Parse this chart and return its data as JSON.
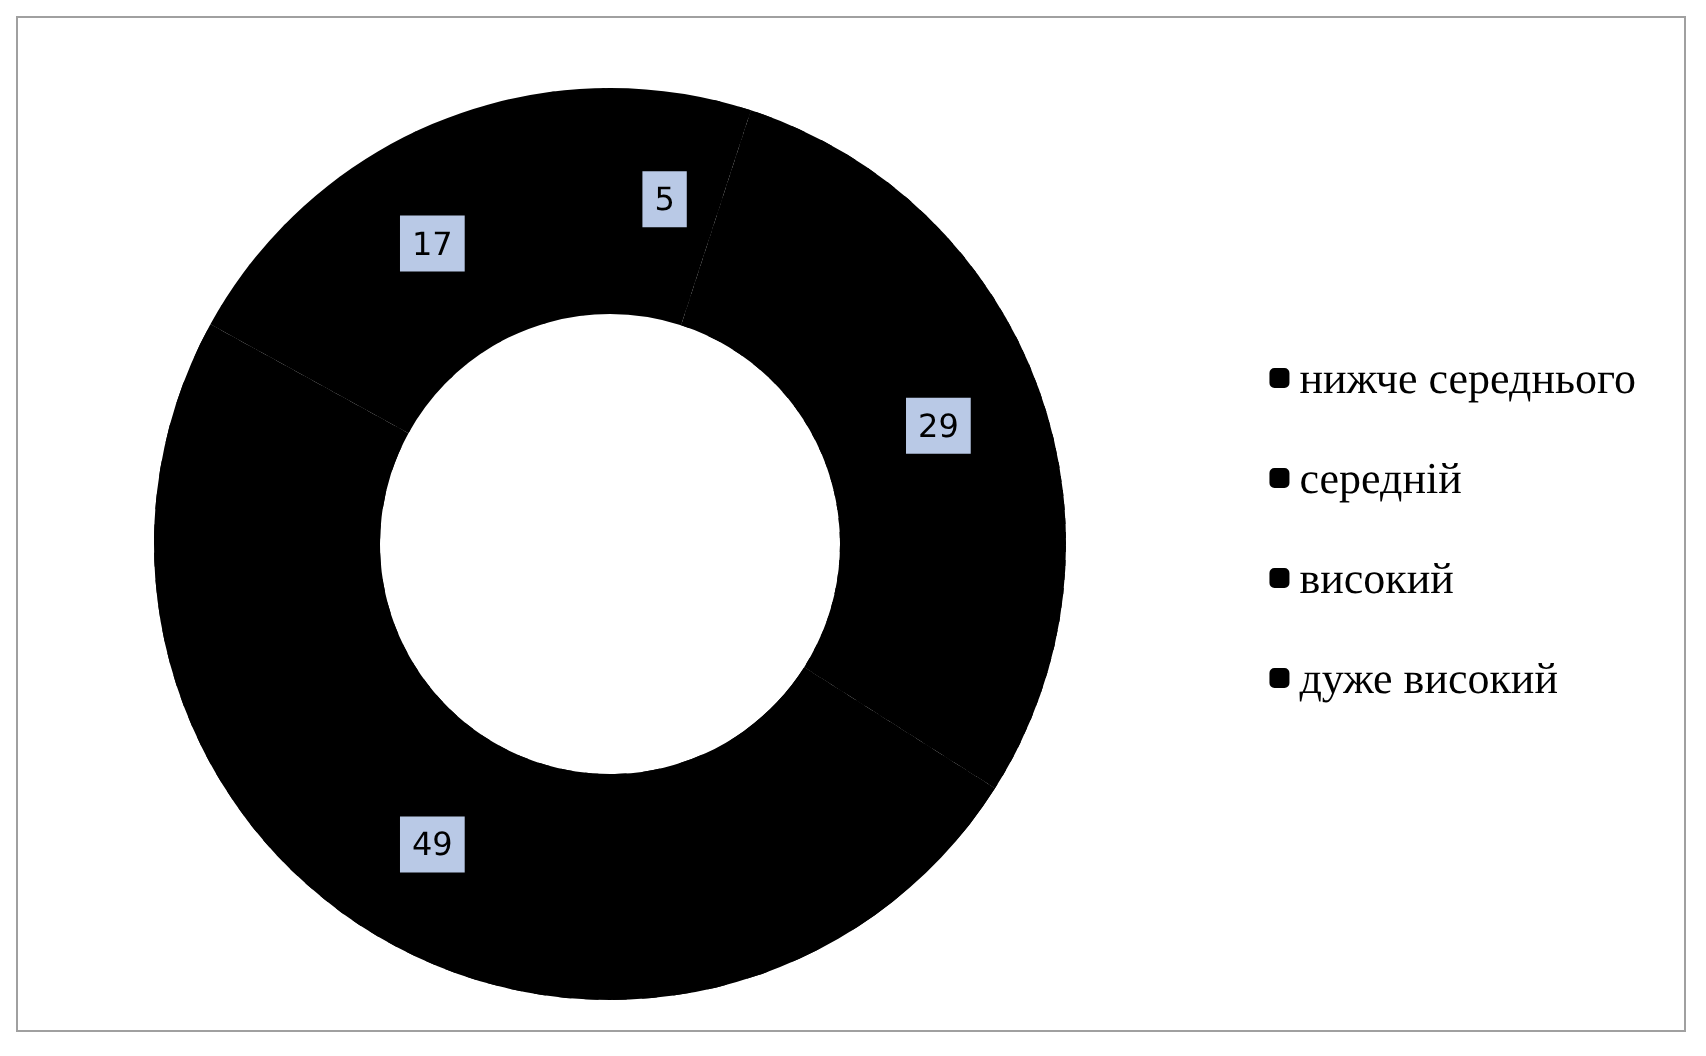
{
  "chart_data": {
    "type": "donut",
    "categories": [
      "нижче середнього",
      "середній",
      "високий",
      "дуже високий"
    ],
    "values": [
      5,
      29,
      49,
      17
    ],
    "colors": [
      "#000000",
      "#000000",
      "#000000",
      "#000000"
    ],
    "data_labels": true,
    "legend": "right"
  }
}
